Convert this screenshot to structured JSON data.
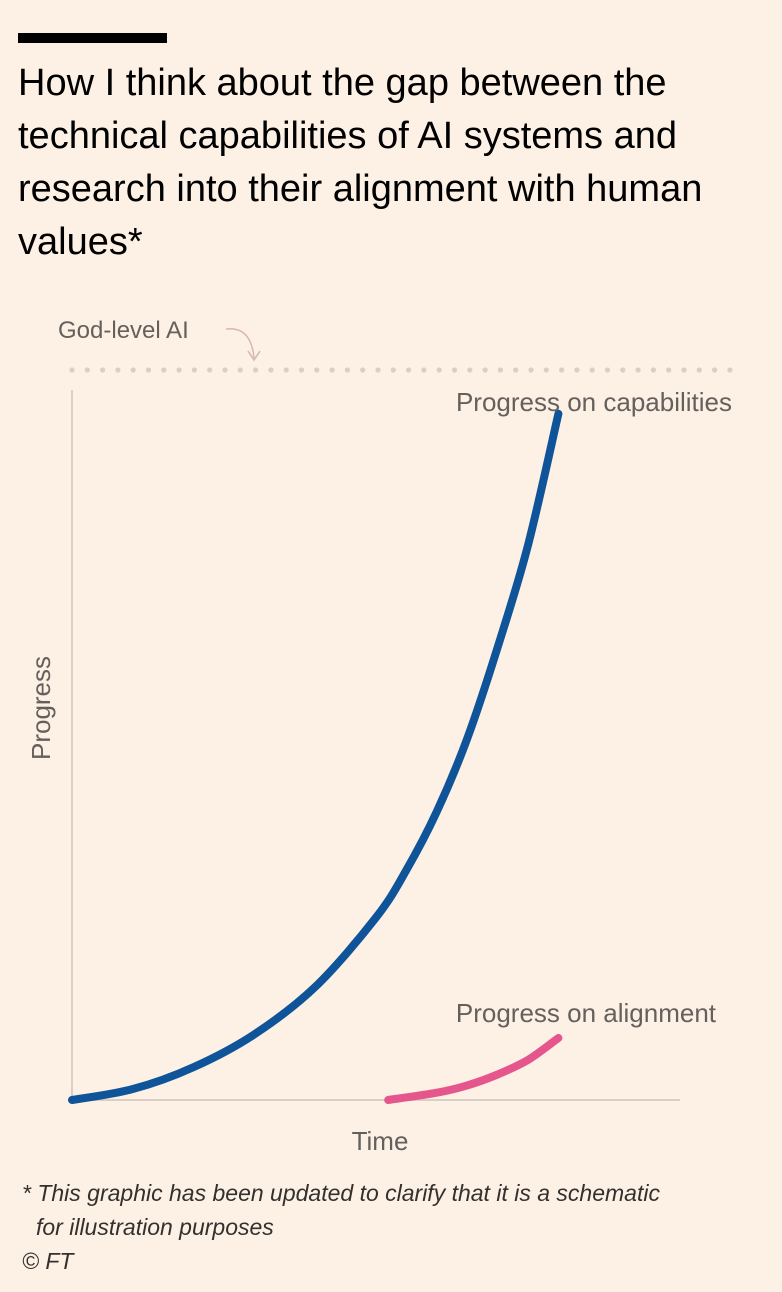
{
  "title": "How I think about the gap between the technical capabilities of AI systems and research into their alignment with human values*",
  "footnote": {
    "line1": "* This graphic has been updated to clarify that it is a schematic",
    "line2": "for illustration purposes"
  },
  "source": "© FT",
  "colors": {
    "background": "#fdf1e6",
    "capabilities": "#0f5499",
    "alignment": "#e5578c",
    "axis": "#d9cfc6",
    "dots": "#d9cfc6",
    "annotation_arrow": "#d9b8b8",
    "label_text": "#66605c"
  },
  "chart_data": {
    "type": "line",
    "title": "How I think about the gap between the technical capabilities of AI systems and research into their alignment with human values*",
    "xlabel": "Time",
    "ylabel": "Progress",
    "xlim": [
      0,
      100
    ],
    "ylim": [
      0,
      100
    ],
    "grid": false,
    "annotations": [
      {
        "text": "God-level AI",
        "type": "reference-line",
        "y": 100
      }
    ],
    "series": [
      {
        "name": "Progress on capabilities",
        "color": "#0f5499",
        "x": [
          0,
          10,
          20,
          30,
          40,
          50,
          55,
          60,
          65,
          70,
          75,
          80
        ],
        "y": [
          0,
          1.5,
          4.5,
          9,
          15.5,
          25,
          31.5,
          39.5,
          49.5,
          62,
          76,
          94
        ]
      },
      {
        "name": "Progress on alignment",
        "color": "#e5578c",
        "x": [
          52,
          60,
          65,
          70,
          75,
          80
        ],
        "y": [
          0,
          1,
          2,
          3.5,
          5.5,
          8.5
        ]
      }
    ]
  }
}
